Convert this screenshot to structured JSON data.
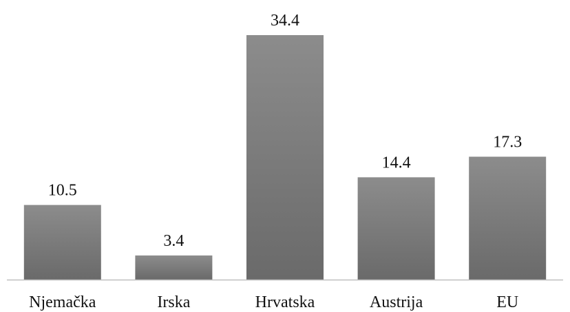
{
  "chart_data": {
    "type": "bar",
    "categories": [
      "Njemačka",
      "Irska",
      "Hrvatska",
      "Austrija",
      "EU"
    ],
    "values": [
      10.5,
      3.4,
      34.4,
      14.4,
      17.3
    ],
    "value_labels": [
      "10.5",
      "3.4",
      "34.4",
      "14.4",
      "17.3"
    ],
    "title": "",
    "xlabel": "",
    "ylabel": "",
    "ylim": [
      0,
      34.4
    ],
    "grid": false,
    "legend": "none",
    "colors": {
      "bar_top": "#8c8c8c",
      "bar_bottom": "#6a6a6a",
      "axis": "#bfbfbf"
    }
  }
}
